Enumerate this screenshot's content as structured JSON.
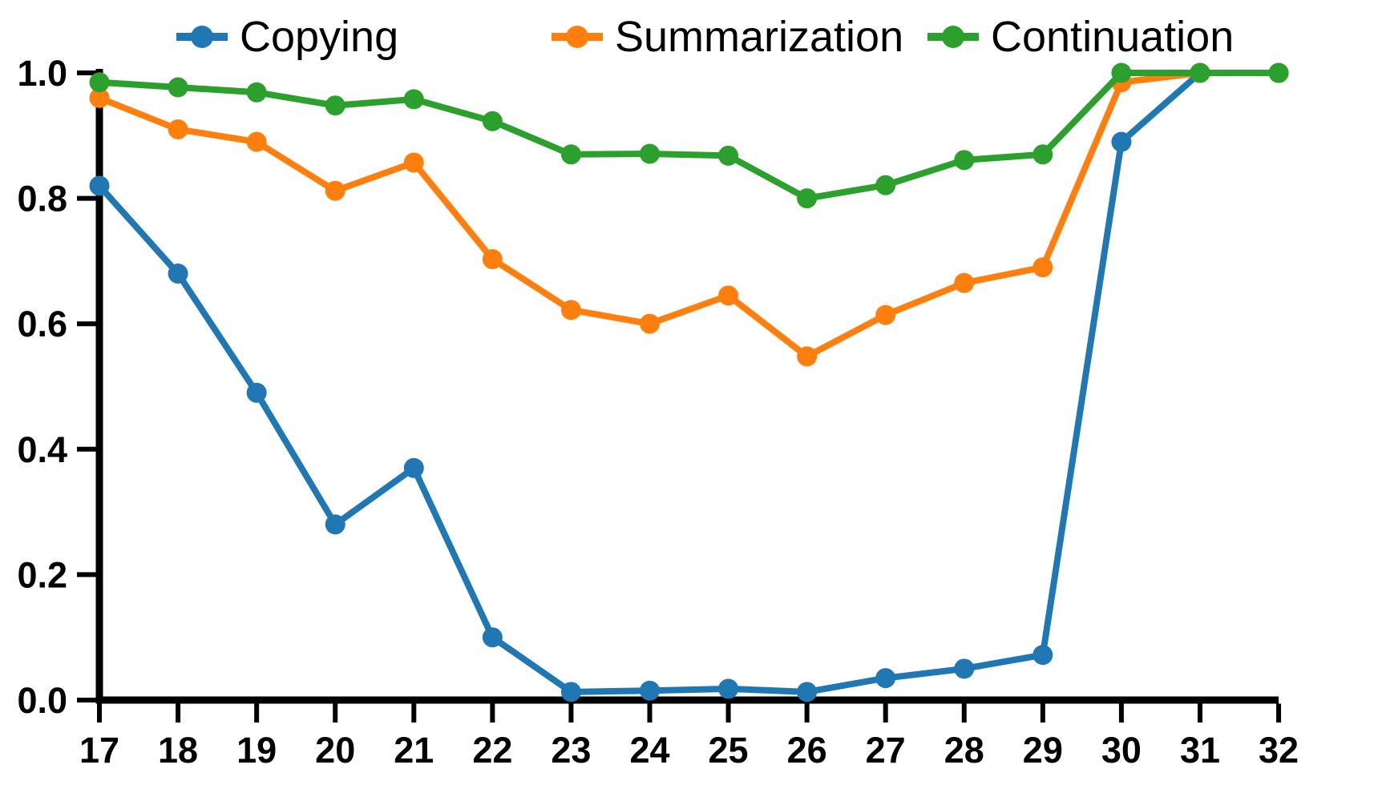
{
  "chart_data": {
    "type": "line",
    "title": "",
    "xlabel": "",
    "ylabel": "",
    "x": [
      17,
      18,
      19,
      20,
      21,
      22,
      23,
      24,
      25,
      26,
      27,
      28,
      29,
      30,
      31,
      32
    ],
    "x_ticks": [
      "17",
      "18",
      "19",
      "20",
      "21",
      "22",
      "23",
      "24",
      "25",
      "26",
      "27",
      "28",
      "29",
      "30",
      "31",
      "32"
    ],
    "y_ticks": [
      "0.0",
      "0.2",
      "0.4",
      "0.6",
      "0.8",
      "1.0"
    ],
    "y_tick_values": [
      0.0,
      0.2,
      0.4,
      0.6,
      0.8,
      1.0
    ],
    "xlim": [
      17,
      32
    ],
    "ylim": [
      0.0,
      1.0
    ],
    "grid": false,
    "legend_position": "top-horizontal-frameless",
    "axis_color": "#000000",
    "background_color": "#ffffff",
    "series": [
      {
        "name": "Copying",
        "color": "#1f77b4",
        "marker": "circle",
        "values": [
          0.82,
          0.68,
          0.49,
          0.28,
          0.37,
          0.1,
          0.013,
          0.015,
          0.018,
          0.013,
          0.035,
          0.05,
          0.072,
          0.89,
          1.0,
          1.0
        ]
      },
      {
        "name": "Summarization",
        "color": "#ff7f0e",
        "marker": "circle",
        "values": [
          0.96,
          0.91,
          0.89,
          0.812,
          0.857,
          0.703,
          0.622,
          0.6,
          0.645,
          0.548,
          0.614,
          0.665,
          0.69,
          0.985,
          1.0,
          1.0
        ]
      },
      {
        "name": "Continuation",
        "color": "#2ca02c",
        "marker": "circle",
        "values": [
          0.985,
          0.977,
          0.969,
          0.948,
          0.958,
          0.923,
          0.87,
          0.871,
          0.868,
          0.8,
          0.821,
          0.861,
          0.87,
          1.0,
          1.0,
          1.0
        ]
      }
    ]
  }
}
